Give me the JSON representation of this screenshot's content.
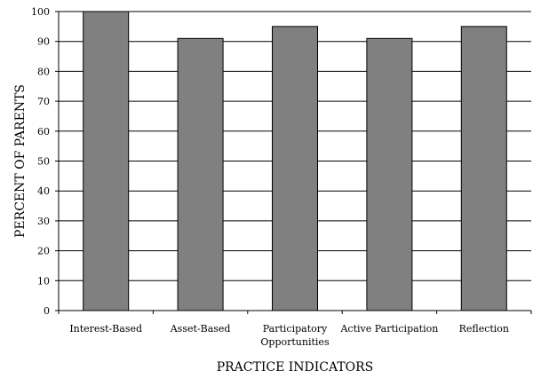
{
  "chart_data": {
    "type": "bar",
    "categories": [
      [
        "Interest-Based"
      ],
      [
        "Asset-Based"
      ],
      [
        "Participatory",
        "Opportunities"
      ],
      [
        "Active Participation"
      ],
      [
        "Reflection"
      ]
    ],
    "values": [
      100,
      91,
      95,
      91,
      95
    ],
    "title": "",
    "xlabel": "PRACTICE INDICATORS",
    "ylabel": "PERCENT OF PARENTS",
    "ylim": [
      0,
      100
    ],
    "yticks": [
      0,
      10,
      20,
      30,
      40,
      50,
      60,
      70,
      80,
      90,
      100
    ],
    "grid": true,
    "bar_color": "#808080",
    "bar_edge_color": "#000000"
  }
}
